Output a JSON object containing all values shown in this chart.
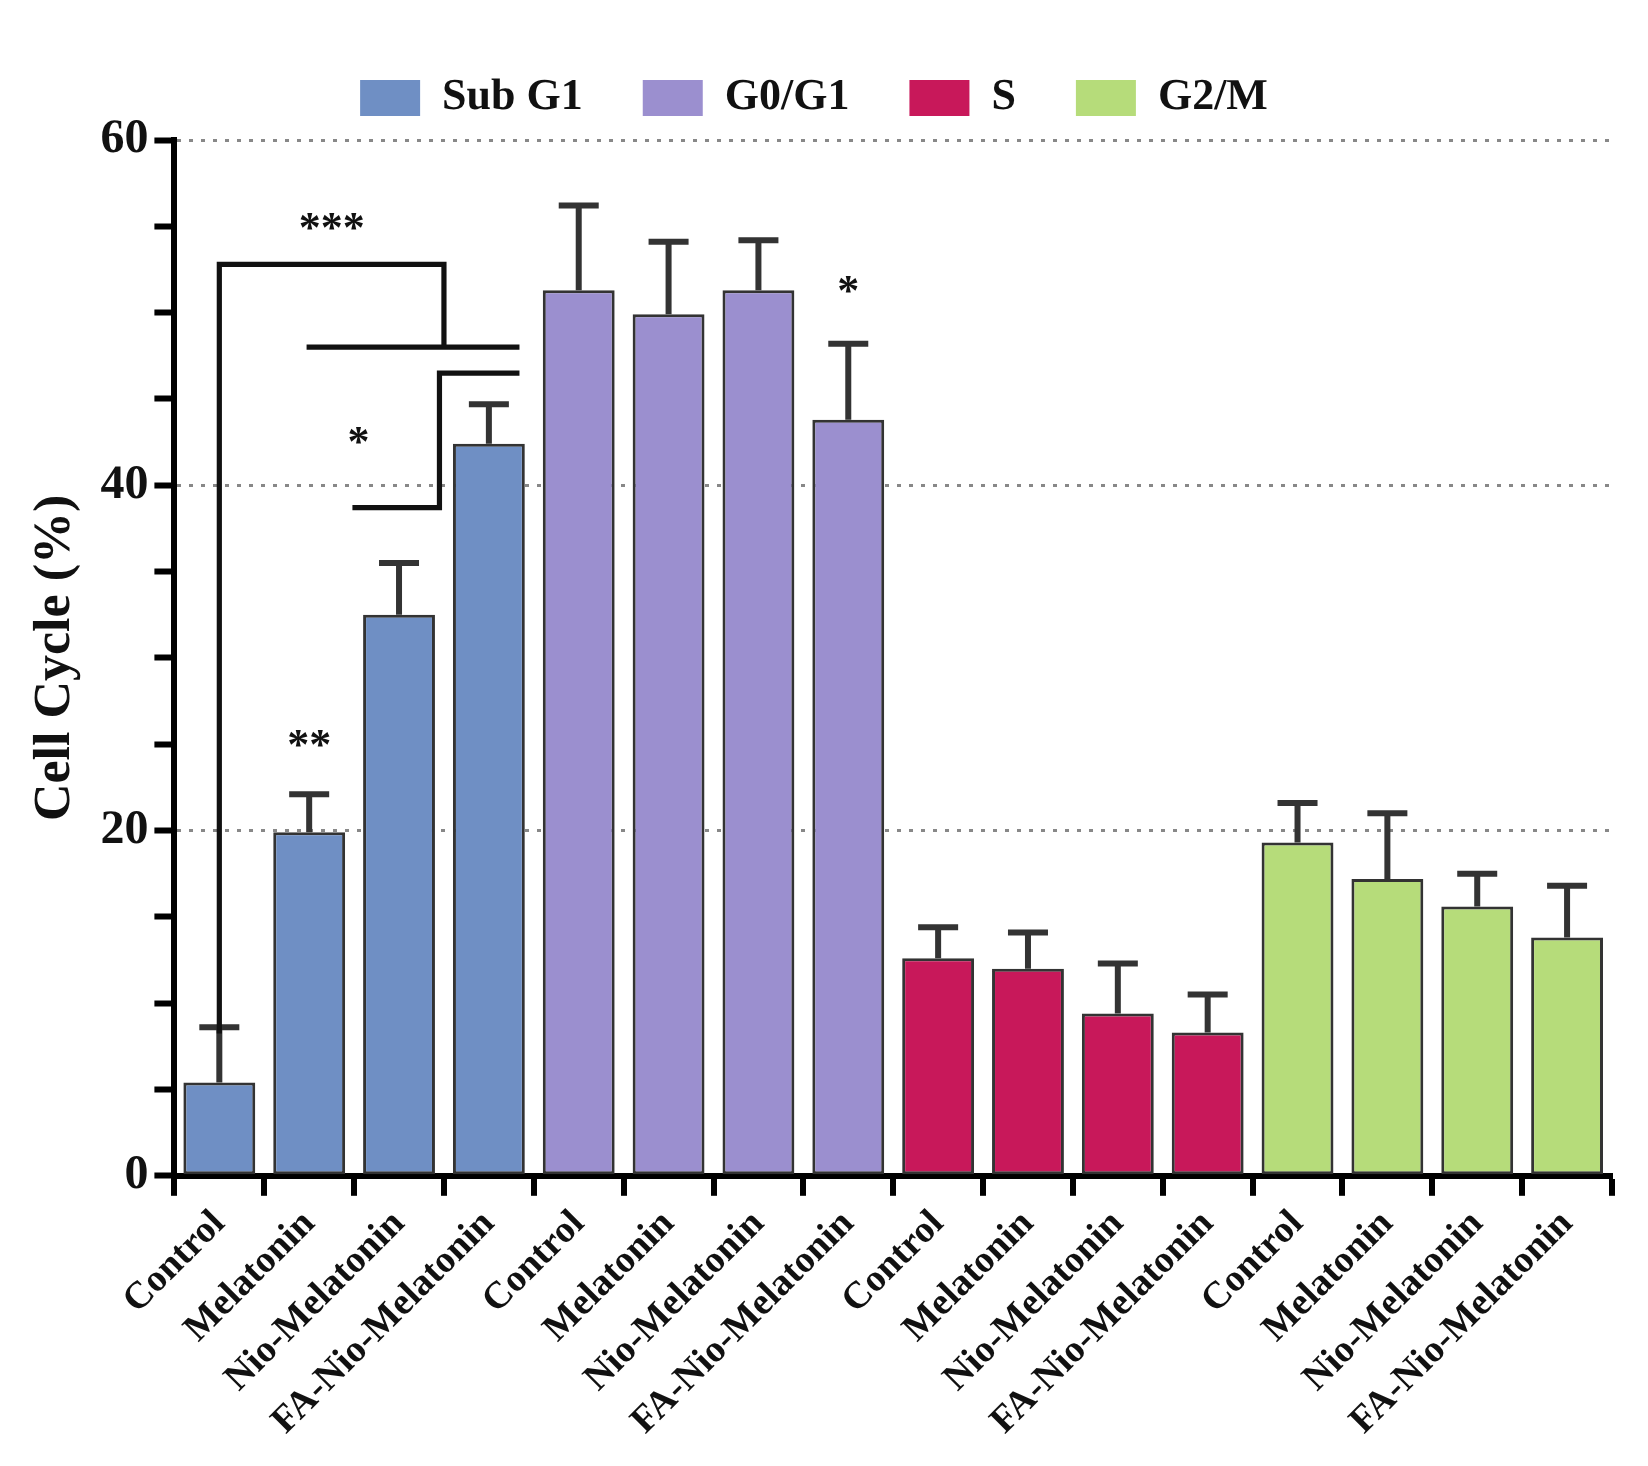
{
  "chart_data": {
    "type": "bar",
    "ylabel": "Cell Cycle (%)",
    "categories": [
      "Control",
      "Melatonin",
      "Nio-Melatonin",
      "FA-Nio-Melatonin",
      "Control",
      "Melatonin",
      "Nio-Melatonin",
      "FA-Nio-Melatonin",
      "Control",
      "Melatonin",
      "Nio-Melatonin",
      "FA-Nio-Melatonin",
      "Control",
      "Melatonin",
      "Nio-Melatonin",
      "FA-Nio-Melatonin"
    ],
    "series": [
      {
        "name": "Sub G1",
        "color": "#6f8fc4",
        "values": [
          5.4,
          19.9,
          32.5,
          42.4,
          null,
          null,
          null,
          null,
          null,
          null,
          null,
          null,
          null,
          null,
          null,
          null
        ],
        "errors": [
          [
            5.4,
            8.6
          ],
          [
            19.9,
            22.1
          ],
          [
            32.5,
            35.5
          ],
          [
            42.4,
            44.7
          ],
          null,
          null,
          null,
          null,
          null,
          null,
          null,
          null,
          null,
          null,
          null,
          null
        ]
      },
      {
        "name": "G0/G1",
        "color": "#9b8fcf",
        "values": [
          null,
          null,
          null,
          null,
          51.3,
          49.9,
          51.3,
          43.8,
          null,
          null,
          null,
          null,
          null,
          null,
          null,
          null
        ],
        "errors": [
          null,
          null,
          null,
          null,
          [
            51.3,
            56.2
          ],
          [
            49.9,
            54.1
          ],
          [
            51.3,
            54.2
          ],
          [
            43.8,
            48.2
          ],
          null,
          null,
          null,
          null,
          null,
          null,
          null,
          null
        ]
      },
      {
        "name": "S",
        "color": "#c8185a",
        "values": [
          null,
          null,
          null,
          null,
          null,
          null,
          null,
          null,
          12.6,
          12.0,
          9.4,
          8.3,
          null,
          null,
          null,
          null
        ],
        "errors": [
          null,
          null,
          null,
          null,
          null,
          null,
          null,
          null,
          [
            12.6,
            14.4
          ],
          [
            12.0,
            14.1
          ],
          [
            9.4,
            12.3
          ],
          [
            8.3,
            10.5
          ],
          null,
          null,
          null,
          null
        ]
      },
      {
        "name": "G2/M",
        "color": "#b6dc7a",
        "values": [
          null,
          null,
          null,
          null,
          null,
          null,
          null,
          null,
          null,
          null,
          null,
          null,
          19.3,
          17.2,
          15.6,
          13.8
        ],
        "errors": [
          null,
          null,
          null,
          null,
          null,
          null,
          null,
          null,
          null,
          null,
          null,
          null,
          [
            19.3,
            21.6
          ],
          [
            17.2,
            21.0
          ],
          [
            15.6,
            17.5
          ],
          [
            13.8,
            16.8
          ]
        ]
      }
    ],
    "ylim": [
      0,
      60
    ],
    "yticks": [
      0,
      {
        "value": 5,
        "label": null
      },
      {
        "value": 10,
        "label": null
      },
      {
        "value": 15,
        "label": null
      },
      20,
      {
        "value": 25,
        "label": null
      },
      {
        "value": 30,
        "label": null
      },
      {
        "value": 35,
        "label": null
      },
      40,
      {
        "value": 45,
        "label": null
      },
      {
        "value": 50,
        "label": null
      },
      {
        "value": 55,
        "label": null
      },
      60
    ],
    "grid": "y",
    "legend": "top",
    "annotations": [
      "***",
      "*",
      "**",
      "*"
    ]
  }
}
